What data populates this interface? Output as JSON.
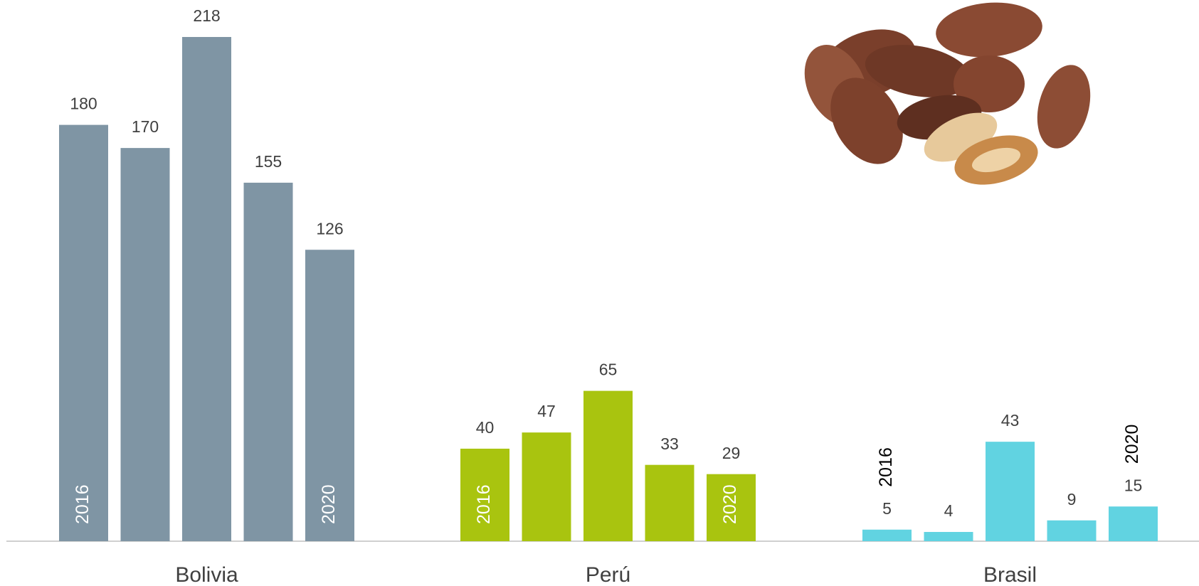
{
  "chart_data": {
    "type": "bar",
    "categories": [
      "Bolivia",
      "Perú",
      "Brasil"
    ],
    "colors": [
      "#7f95a4",
      "#a9c40f",
      "#61d3e1"
    ],
    "series": [
      {
        "name": "2016",
        "values": [
          180,
          40,
          5
        ]
      },
      {
        "name": null,
        "values": [
          170,
          47,
          4
        ]
      },
      {
        "name": null,
        "values": [
          218,
          65,
          43
        ]
      },
      {
        "name": null,
        "values": [
          155,
          33,
          9
        ]
      },
      {
        "name": "2020",
        "values": [
          126,
          29,
          15
        ]
      }
    ]
  }
}
